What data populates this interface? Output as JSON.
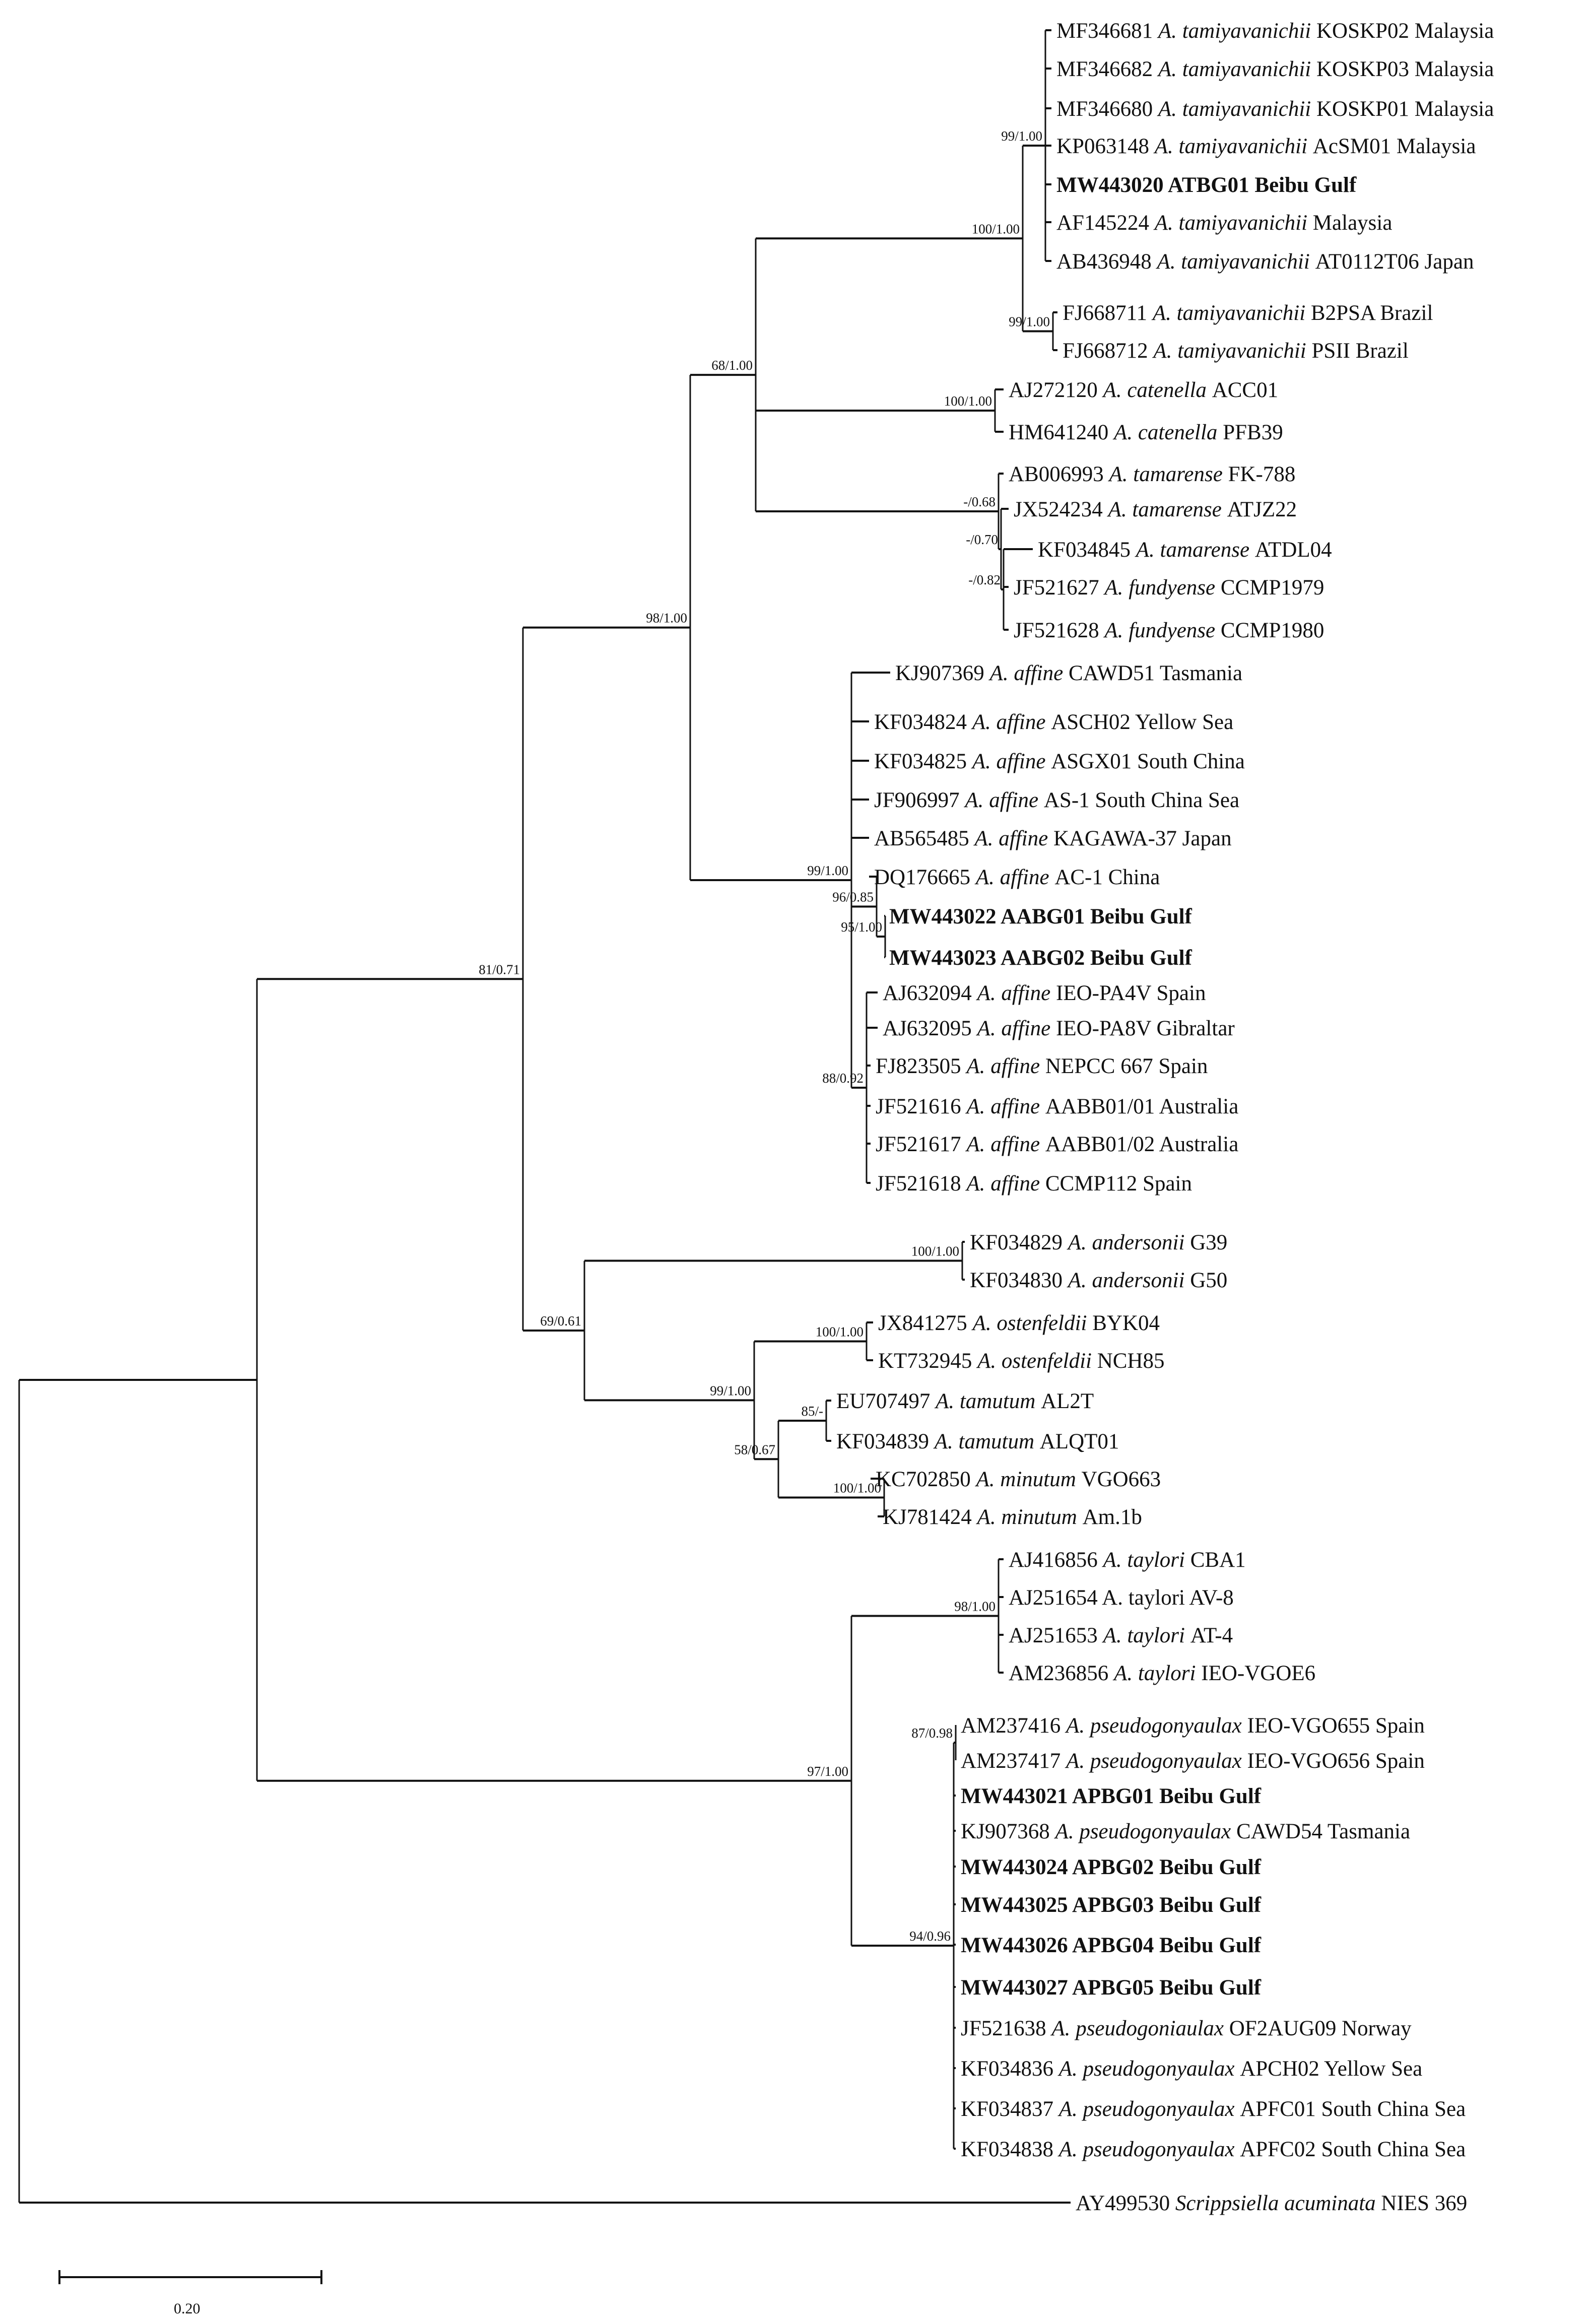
{
  "figure": {
    "type": "phylogenetic-tree",
    "scale_bar_label": "0.20"
  },
  "taxa": [
    {
      "acc": "MF346681",
      "genus": "A.",
      "species": "tamiyavanichii",
      "rest": "KOSKP02 Malaysia",
      "bold": false
    },
    {
      "acc": "MF346682",
      "genus": "A.",
      "species": "tamiyavanichii",
      "rest": "KOSKP03 Malaysia",
      "bold": false
    },
    {
      "acc": "MF346680",
      "genus": "A.",
      "species": "tamiyavanichii",
      "rest": "KOSKP01 Malaysia",
      "bold": false
    },
    {
      "acc": "KP063148",
      "genus": "A.",
      "species": "tamiyavanichii",
      "rest": "AcSM01 Malaysia",
      "bold": false
    },
    {
      "acc": "MW443020",
      "genus": "",
      "species": "",
      "rest": "ATBG01 Beibu Gulf",
      "bold": true
    },
    {
      "acc": "AF145224",
      "genus": "A.",
      "species": "tamiyavanichii",
      "rest": " Malaysia",
      "bold": false
    },
    {
      "acc": "AB436948",
      "genus": "A.",
      "species": "tamiyavanichii",
      "rest": "AT0112T06 Japan",
      "bold": false
    },
    {
      "acc": "FJ668711",
      "genus": "A.",
      "species": "tamiyavanichii",
      "rest": " B2PSA  Brazil",
      "bold": false
    },
    {
      "acc": "FJ668712",
      "genus": "A.",
      "species": "tamiyavanichii",
      "rest": " PSII  Brazil",
      "bold": false
    },
    {
      "acc": "AJ272120",
      "genus": "A.",
      "species": "catenella",
      "rest": "ACC01",
      "bold": false
    },
    {
      "acc": "HM641240",
      "genus": "A.",
      "species": "catenella",
      "rest": "PFB39",
      "bold": false
    },
    {
      "acc": "AB006993",
      "genus": "A.",
      "species": "tamarense",
      "rest": " FK-788",
      "bold": false
    },
    {
      "acc": "JX524234",
      "genus": "A.",
      "species": "tamarense",
      "rest": "ATJZ22",
      "bold": false
    },
    {
      "acc": "KF034845",
      "genus": "A.",
      "species": "tamarense",
      "rest": "ATDL04",
      "bold": false
    },
    {
      "acc": "JF521627",
      "genus": "A.",
      "species": "fundyense",
      "rest": "CCMP1979",
      "bold": false
    },
    {
      "acc": "JF521628",
      "genus": " A.",
      "species": "fundyense",
      "rest": "CCMP1980",
      "bold": false
    },
    {
      "acc": "KJ907369",
      "genus": "A.",
      "species": "affine",
      "rest": "CAWD51  Tasmania",
      "bold": false
    },
    {
      "acc": "KF034824",
      "genus": "A.",
      "species": "affine",
      "rest": "ASCH02 Yellow Sea",
      "bold": false
    },
    {
      "acc": "KF034825",
      "genus": "A.",
      "species": "affine",
      "rest": " ASGX01 South China",
      "bold": false
    },
    {
      "acc": "JF906997",
      "genus": "A.",
      "species": "affine",
      "rest": "AS-1 South China Sea",
      "bold": false
    },
    {
      "acc": "AB565485",
      "genus": "A.",
      "species": "affine",
      "rest": " KAGAWA-37  Japan",
      "bold": false
    },
    {
      "acc": "DQ176665",
      "genus": "A.",
      "species": "affine",
      "rest": "AC-1 China",
      "bold": false
    },
    {
      "acc": "MW443022",
      "genus": "",
      "species": "",
      "rest": "AABG01 Beibu Gulf",
      "bold": true
    },
    {
      "acc": "MW443023",
      "genus": "",
      "species": "",
      "rest": "AABG02 Beibu Gulf",
      "bold": true
    },
    {
      "acc": "AJ632094",
      "genus": "A.",
      "species": "affine",
      "rest": " IEO-PA4V  Spain",
      "bold": false
    },
    {
      "acc": "AJ632095",
      "genus": "A.",
      "species": "affine",
      "rest": " IEO-PA8V  Gibraltar",
      "bold": false
    },
    {
      "acc": "FJ823505",
      "genus": "A.",
      "species": "affine",
      "rest": "NEPCC 667  Spain",
      "bold": false
    },
    {
      "acc": "JF521616",
      "genus": "A.",
      "species": "affine",
      "rest": " AABB01/01  Australia",
      "bold": false
    },
    {
      "acc": "JF521617",
      "genus": "A.",
      "species": "affine",
      "rest": " AABB01/02  Australia",
      "bold": false
    },
    {
      "acc": "JF521618",
      "genus": "A.",
      "species": "affine",
      "rest": " CCMP112 Spain",
      "bold": false
    },
    {
      "acc": "KF034829",
      "genus": "A.",
      "species": "andersonii",
      "rest": "G39",
      "bold": false
    },
    {
      "acc": "KF034830",
      "genus": "A.",
      "species": "andersonii",
      "rest": " G50",
      "bold": false
    },
    {
      "acc": "JX841275",
      "genus": "A.",
      "species": "ostenfeldii",
      "rest": "BYK04",
      "bold": false
    },
    {
      "acc": "KT732945",
      "genus": "A.",
      "species": "ostenfeldii",
      "rest": "NCH85",
      "bold": false
    },
    {
      "acc": "EU707497",
      "genus": "A.",
      "species": "tamutum",
      "rest": "AL2T",
      "bold": false
    },
    {
      "acc": "KF034839",
      "genus": "A.",
      "species": "tamutum",
      "rest": "ALQT01",
      "bold": false
    },
    {
      "acc": "KC702850",
      "genus": "A.",
      "species": "minutum",
      "rest": "VGO663",
      "bold": false
    },
    {
      "acc": "KJ781424",
      "genus": "A.",
      "species": "minutum",
      "rest": "Am.1b",
      "bold": false
    },
    {
      "acc": "AJ416856",
      "genus": "A.",
      "species": "taylori",
      "rest": " CBA1",
      "bold": false
    },
    {
      "acc": "AJ251654",
      "genus": "A. taylori",
      "species": "",
      "rest": "  AV-8",
      "bold": false
    },
    {
      "acc": "AJ251653",
      "genus": "A.",
      "species": "taylori",
      "rest": " AT-4",
      "bold": false
    },
    {
      "acc": "AM236856",
      "genus": "A.",
      "species": "taylori",
      "rest": " IEO-VGOE6",
      "bold": false
    },
    {
      "acc": "AM237416",
      "genus": "A.",
      "species": "pseudogonyaulax",
      "rest": " IEO-VGO655 Spain",
      "bold": false
    },
    {
      "acc": "AM237417",
      "genus": "A.",
      "species": "pseudogonyaulax",
      "rest": "IEO-VGO656 Spain",
      "bold": false
    },
    {
      "acc": "MW443021",
      "genus": "",
      "species": "",
      "rest": "APBG01 Beibu Gulf",
      "bold": true
    },
    {
      "acc": "KJ907368",
      "genus": "A.",
      "species": "pseudogonyaulax",
      "rest": "CAWD54  Tasmania",
      "bold": false
    },
    {
      "acc": "MW443024",
      "genus": "",
      "species": "",
      "rest": "APBG02 Beibu Gulf",
      "bold": true
    },
    {
      "acc": "MW443025",
      "genus": "",
      "species": "",
      "rest": "APBG03 Beibu Gulf",
      "bold": true
    },
    {
      "acc": "MW443026",
      "genus": "",
      "species": "",
      "rest": "APBG04 Beibu Gulf",
      "bold": true
    },
    {
      "acc": "MW443027",
      "genus": "",
      "species": "",
      "rest": "APBG05 Beibu Gulf",
      "bold": true
    },
    {
      "acc": "JF521638",
      "genus": "A.",
      "species": "pseudogoniaulax",
      "rest": "OF2AUG09 Norway",
      "bold": false
    },
    {
      "acc": "KF034836",
      "genus": "A.",
      "species": "pseudogonyaulax",
      "rest": "APCH02  Yellow Sea",
      "bold": false
    },
    {
      "acc": "KF034837",
      "genus": "A.",
      "species": "pseudogonyaulax",
      "rest": "APFC01  South China Sea",
      "bold": false
    },
    {
      "acc": "KF034838",
      "genus": "A.",
      "species": "pseudogonyaulax",
      "rest": "APFC02  South China Sea",
      "bold": false
    },
    {
      "acc": "AY499530",
      "genus": "Scrippsiella",
      "species": "acuminata",
      "rest": "NIES 369",
      "bold": false
    }
  ],
  "supports": {
    "n_tamiya_inner": "99/1.00",
    "n_tamiya": "100/1.00",
    "n_brazil": "99/1.00",
    "n_cat": "100/1.00",
    "n_tam1": "-/0.68",
    "n_tam2": "-/0.70",
    "n_tam3": "-/0.82",
    "n_tc": "68/1.00",
    "n_aff": "99/1.00",
    "n_aff_sub": "96/0.85",
    "n_aabg": "95/1.00",
    "n_aff_bot": "88/0.92",
    "n_tca": "98/1.00",
    "n_and": "100/1.00",
    "n_ost": "100/1.00",
    "n_tamut": "85/-",
    "n_min": "100/1.00",
    "n_tm": "58/0.67",
    "n_otm": "99/1.00",
    "n_ao": "69/0.61",
    "n_top": "81/0.71",
    "n_tay": "98/1.00",
    "n_pse_top": "87/0.98",
    "n_pse": "94/0.96",
    "n_tp": "97/1.00"
  }
}
